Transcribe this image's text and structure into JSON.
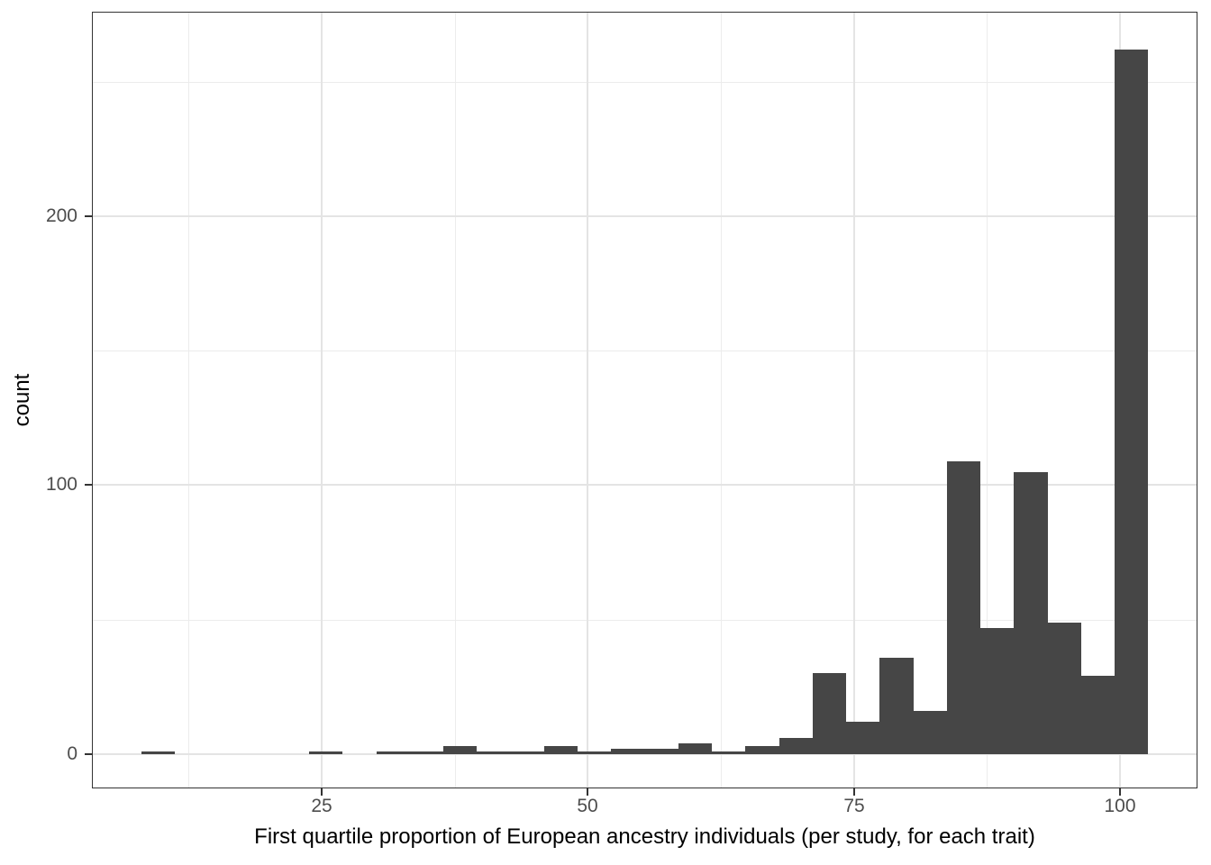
{
  "chart_data": {
    "type": "bar",
    "variant": "histogram",
    "title": "",
    "xlabel": "First quartile proportion of European ancestry individuals (per study, for each trait)",
    "ylabel": "count",
    "x_ticks": [
      25,
      50,
      75,
      100
    ],
    "y_ticks": [
      0,
      100,
      200
    ],
    "x_minor_gridlines": [
      12.5,
      37.5,
      62.5,
      87.5
    ],
    "y_minor_gridlines": [
      50,
      150,
      250
    ],
    "xlim": [
      3.5,
      107.2
    ],
    "ylim": [
      -12.4,
      275.7
    ],
    "grid": true,
    "legend": false,
    "bin_width": 3.15,
    "bins_note": "each bin is [x_left, x_right, count]",
    "bins": [
      [
        8.07,
        11.22,
        1
      ],
      [
        11.22,
        14.37,
        0
      ],
      [
        14.37,
        17.53,
        0
      ],
      [
        17.53,
        20.68,
        0
      ],
      [
        20.68,
        23.83,
        0
      ],
      [
        23.83,
        26.98,
        1
      ],
      [
        26.98,
        30.14,
        0
      ],
      [
        30.14,
        33.29,
        1
      ],
      [
        33.29,
        36.44,
        1
      ],
      [
        36.44,
        39.59,
        3
      ],
      [
        39.59,
        42.75,
        1
      ],
      [
        42.75,
        45.9,
        1
      ],
      [
        45.9,
        49.05,
        3
      ],
      [
        49.05,
        52.2,
        1
      ],
      [
        52.2,
        55.36,
        2
      ],
      [
        55.36,
        58.51,
        2
      ],
      [
        58.51,
        61.66,
        4
      ],
      [
        61.66,
        64.81,
        1
      ],
      [
        64.81,
        67.97,
        3
      ],
      [
        67.97,
        71.12,
        6
      ],
      [
        71.12,
        74.27,
        30
      ],
      [
        74.27,
        77.42,
        12
      ],
      [
        77.42,
        80.58,
        36
      ],
      [
        80.58,
        83.73,
        16
      ],
      [
        83.73,
        86.88,
        109
      ],
      [
        86.88,
        90.03,
        47
      ],
      [
        90.03,
        93.19,
        105
      ],
      [
        93.19,
        96.34,
        49
      ],
      [
        96.34,
        99.49,
        29
      ],
      [
        99.49,
        102.64,
        262
      ]
    ],
    "colors": {
      "bar_fill": "#464646",
      "grid_major": "#e4e4e4",
      "grid_minor": "#ececec",
      "panel_border": "#333333",
      "tick_mark": "#333333",
      "tick_label": "#4d4d4d",
      "axis_title": "#000000",
      "background": "#ffffff"
    }
  }
}
